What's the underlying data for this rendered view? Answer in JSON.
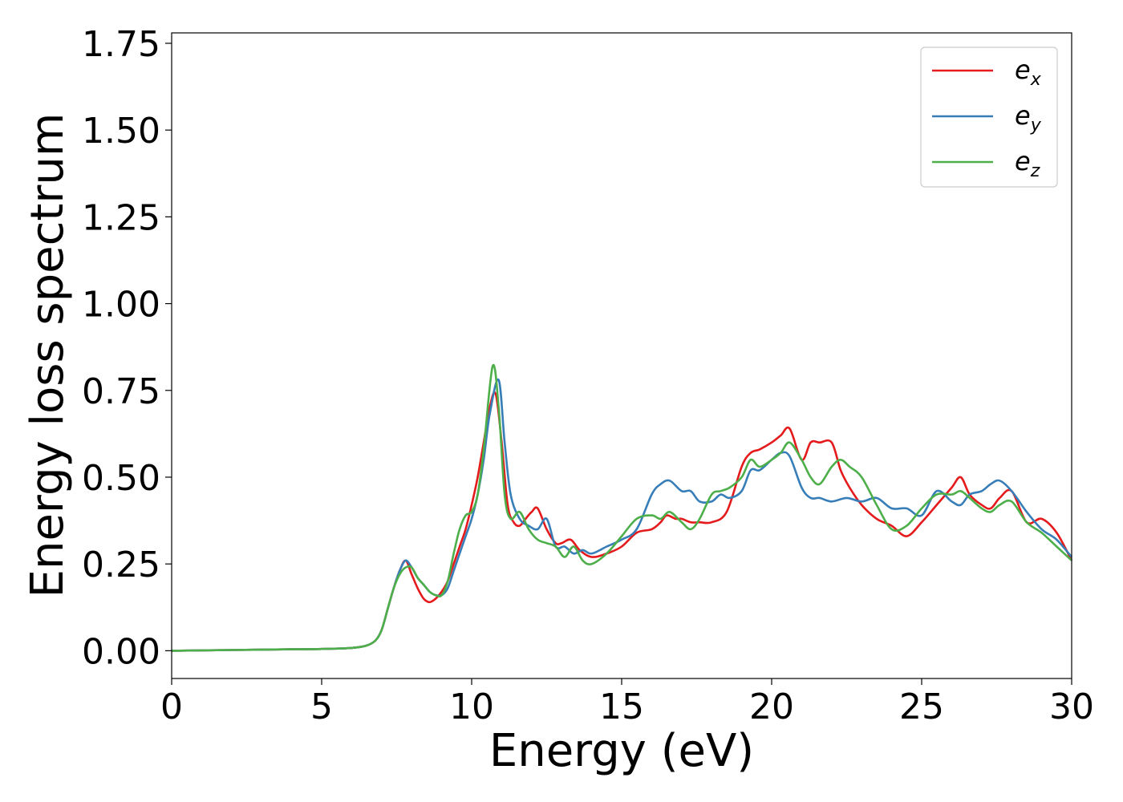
{
  "chart_data": {
    "type": "line",
    "xlabel": "Energy (eV)",
    "ylabel": "Energy loss spectrum",
    "xlim": [
      0,
      30
    ],
    "ylim": [
      -0.08,
      1.78
    ],
    "xticks": [
      0,
      5,
      10,
      15,
      20,
      25,
      30
    ],
    "xtick_labels": [
      "0",
      "5",
      "10",
      "15",
      "20",
      "25",
      "30"
    ],
    "yticks": [
      0.0,
      0.25,
      0.5,
      0.75,
      1.0,
      1.25,
      1.5,
      1.75
    ],
    "ytick_labels": [
      "0.00",
      "0.25",
      "0.50",
      "0.75",
      "1.00",
      "1.25",
      "1.50",
      "1.75"
    ],
    "grid": false,
    "legend_position": "top-right",
    "series": [
      {
        "name": "e_x",
        "legend_main": "e",
        "legend_sub": "x",
        "color": "#e41a1c",
        "x": [
          0,
          2,
          4,
          5,
          6,
          6.5,
          6.8,
          7.0,
          7.2,
          7.4,
          7.6,
          7.8,
          8.0,
          8.2,
          8.4,
          8.6,
          8.8,
          9.0,
          9.2,
          9.4,
          9.6,
          9.8,
          10.0,
          10.2,
          10.4,
          10.6,
          10.8,
          11.0,
          11.2,
          11.4,
          11.6,
          11.8,
          12.0,
          12.2,
          12.5,
          12.8,
          13.0,
          13.3,
          13.6,
          14.0,
          14.5,
          15.0,
          15.5,
          16.0,
          16.3,
          16.5,
          16.8,
          17.0,
          17.3,
          17.6,
          18.0,
          18.5,
          19.0,
          19.3,
          19.6,
          20.0,
          20.3,
          20.6,
          21.0,
          21.3,
          21.6,
          22.0,
          22.3,
          22.6,
          23.0,
          23.5,
          24.0,
          24.5,
          25.0,
          25.5,
          26.0,
          26.3,
          26.6,
          27.0,
          27.3,
          27.6,
          28.0,
          28.5,
          29.0,
          29.5,
          30.0
        ],
        "y": [
          0.0,
          0.002,
          0.004,
          0.005,
          0.008,
          0.015,
          0.03,
          0.06,
          0.12,
          0.18,
          0.23,
          0.26,
          0.22,
          0.18,
          0.15,
          0.14,
          0.15,
          0.17,
          0.2,
          0.25,
          0.3,
          0.35,
          0.42,
          0.5,
          0.6,
          0.7,
          0.74,
          0.6,
          0.42,
          0.37,
          0.36,
          0.38,
          0.4,
          0.41,
          0.35,
          0.31,
          0.31,
          0.32,
          0.29,
          0.27,
          0.28,
          0.3,
          0.34,
          0.35,
          0.37,
          0.39,
          0.38,
          0.38,
          0.37,
          0.37,
          0.37,
          0.4,
          0.53,
          0.57,
          0.58,
          0.6,
          0.62,
          0.64,
          0.55,
          0.6,
          0.6,
          0.6,
          0.52,
          0.47,
          0.42,
          0.38,
          0.36,
          0.33,
          0.37,
          0.42,
          0.47,
          0.5,
          0.45,
          0.42,
          0.41,
          0.44,
          0.46,
          0.37,
          0.38,
          0.34,
          0.26
        ]
      },
      {
        "name": "e_y",
        "legend_main": "e",
        "legend_sub": "y",
        "color": "#377eb8",
        "x": [
          0,
          2,
          4,
          5,
          6,
          6.5,
          6.8,
          7.0,
          7.2,
          7.4,
          7.6,
          7.8,
          8.0,
          8.2,
          8.4,
          8.6,
          8.8,
          9.0,
          9.2,
          9.4,
          9.6,
          9.8,
          10.0,
          10.2,
          10.4,
          10.6,
          10.9,
          11.1,
          11.3,
          11.6,
          11.9,
          12.2,
          12.5,
          12.8,
          13.1,
          13.4,
          13.7,
          14.0,
          14.5,
          15.0,
          15.5,
          16.0,
          16.3,
          16.6,
          17.0,
          17.3,
          17.6,
          18.0,
          18.3,
          18.6,
          19.0,
          19.3,
          19.6,
          20.0,
          20.3,
          20.6,
          21.0,
          21.3,
          21.6,
          22.0,
          22.5,
          23.0,
          23.5,
          24.0,
          24.5,
          25.0,
          25.5,
          26.0,
          26.3,
          26.6,
          27.0,
          27.3,
          27.6,
          28.0,
          28.5,
          29.0,
          29.5,
          30.0
        ],
        "y": [
          0.0,
          0.002,
          0.004,
          0.005,
          0.008,
          0.015,
          0.03,
          0.06,
          0.12,
          0.18,
          0.23,
          0.26,
          0.24,
          0.21,
          0.19,
          0.17,
          0.16,
          0.16,
          0.18,
          0.23,
          0.28,
          0.33,
          0.38,
          0.45,
          0.55,
          0.68,
          0.78,
          0.6,
          0.45,
          0.38,
          0.36,
          0.35,
          0.38,
          0.3,
          0.3,
          0.28,
          0.29,
          0.28,
          0.3,
          0.32,
          0.35,
          0.45,
          0.48,
          0.49,
          0.46,
          0.46,
          0.43,
          0.43,
          0.45,
          0.44,
          0.46,
          0.52,
          0.52,
          0.55,
          0.57,
          0.56,
          0.47,
          0.44,
          0.44,
          0.43,
          0.44,
          0.43,
          0.44,
          0.41,
          0.41,
          0.39,
          0.46,
          0.43,
          0.42,
          0.45,
          0.46,
          0.48,
          0.49,
          0.46,
          0.4,
          0.35,
          0.32,
          0.27
        ]
      },
      {
        "name": "e_z",
        "legend_main": "e",
        "legend_sub": "z",
        "color": "#4daf4a",
        "x": [
          0,
          2,
          4,
          5,
          6,
          6.5,
          6.8,
          7.0,
          7.2,
          7.4,
          7.6,
          7.8,
          8.0,
          8.2,
          8.4,
          8.6,
          8.8,
          9.0,
          9.2,
          9.4,
          9.6,
          9.8,
          10.0,
          10.2,
          10.4,
          10.7,
          10.9,
          11.1,
          11.3,
          11.6,
          11.9,
          12.2,
          12.5,
          12.8,
          13.1,
          13.4,
          13.7,
          14.0,
          14.5,
          15.0,
          15.5,
          16.0,
          16.3,
          16.6,
          17.0,
          17.3,
          17.6,
          18.0,
          18.3,
          18.6,
          19.0,
          19.3,
          19.6,
          20.0,
          20.3,
          20.6,
          21.0,
          21.3,
          21.6,
          22.0,
          22.3,
          22.6,
          23.0,
          23.5,
          24.0,
          24.5,
          25.0,
          25.5,
          26.0,
          26.3,
          26.6,
          27.0,
          27.3,
          27.6,
          28.0,
          28.5,
          29.0,
          29.5,
          30.0
        ],
        "y": [
          0.0,
          0.002,
          0.004,
          0.005,
          0.008,
          0.015,
          0.03,
          0.06,
          0.12,
          0.18,
          0.22,
          0.24,
          0.24,
          0.21,
          0.19,
          0.17,
          0.16,
          0.16,
          0.2,
          0.28,
          0.35,
          0.39,
          0.4,
          0.45,
          0.58,
          0.82,
          0.7,
          0.45,
          0.38,
          0.4,
          0.35,
          0.32,
          0.31,
          0.3,
          0.27,
          0.3,
          0.26,
          0.25,
          0.28,
          0.33,
          0.38,
          0.39,
          0.38,
          0.4,
          0.37,
          0.35,
          0.38,
          0.45,
          0.46,
          0.47,
          0.5,
          0.55,
          0.53,
          0.55,
          0.57,
          0.6,
          0.55,
          0.5,
          0.48,
          0.53,
          0.55,
          0.53,
          0.5,
          0.42,
          0.35,
          0.36,
          0.41,
          0.45,
          0.45,
          0.46,
          0.44,
          0.41,
          0.4,
          0.42,
          0.43,
          0.37,
          0.34,
          0.3,
          0.26
        ]
      }
    ]
  }
}
